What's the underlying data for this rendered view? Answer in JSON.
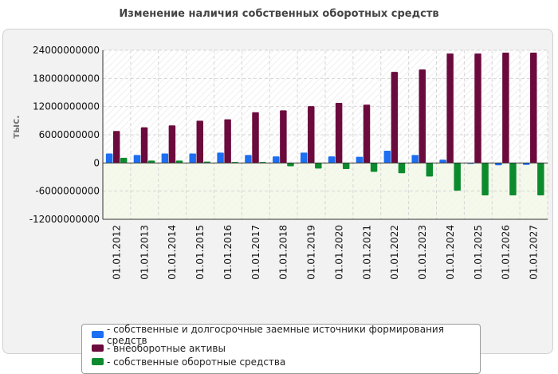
{
  "chart_data": {
    "type": "bar",
    "title": "Изменение наличия собственных оборотных средств",
    "ylabel": "тыс.",
    "xlabel": "",
    "ylim": [
      -12000000000,
      24000000000
    ],
    "yticks": [
      24000000000,
      18000000000,
      12000000000,
      6000000000,
      0,
      -6000000000,
      -12000000000
    ],
    "ytick_labels": [
      "24000000000",
      "18000000000",
      "12000000000",
      "6000000000",
      "0",
      "-6000000000",
      "-12000000000"
    ],
    "categories": [
      "01.01.2012",
      "01.01.2013",
      "01.01.2014",
      "01.01.2015",
      "01.01.2016",
      "01.01.2017",
      "01.01.2018",
      "01.01.2019",
      "01.01.2020",
      "01.01.2021",
      "01.01.2022",
      "01.01.2023",
      "01.01.2024",
      "01.01.2025",
      "01.01.2026",
      "01.01.2027"
    ],
    "series": [
      {
        "name": "собственные и долгосрочные заемные источники формирования средств",
        "color": "#1c6ef2",
        "values": [
          2000000000,
          1700000000,
          2000000000,
          2000000000,
          2200000000,
          1700000000,
          1400000000,
          2200000000,
          1400000000,
          1300000000,
          2600000000,
          1700000000,
          700000000,
          -200000000,
          -500000000,
          -400000000
        ]
      },
      {
        "name": "внеоборотные активы",
        "color": "#6b0a3c",
        "values": [
          6800000000,
          7600000000,
          8000000000,
          9000000000,
          9300000000,
          10800000000,
          11200000000,
          12100000000,
          12800000000,
          12400000000,
          19400000000,
          19900000000,
          23300000000,
          23300000000,
          23500000000,
          23500000000
        ]
      },
      {
        "name": "собственные оборотные средства",
        "color": "#0c8a2e",
        "values": [
          1100000000,
          500000000,
          500000000,
          300000000,
          200000000,
          200000000,
          -700000000,
          -1200000000,
          -1300000000,
          -1900000000,
          -2200000000,
          -2900000000,
          -5900000000,
          -6900000000,
          -6900000000,
          -6900000000
        ]
      }
    ],
    "grid": true,
    "legend_position": "bottom"
  }
}
